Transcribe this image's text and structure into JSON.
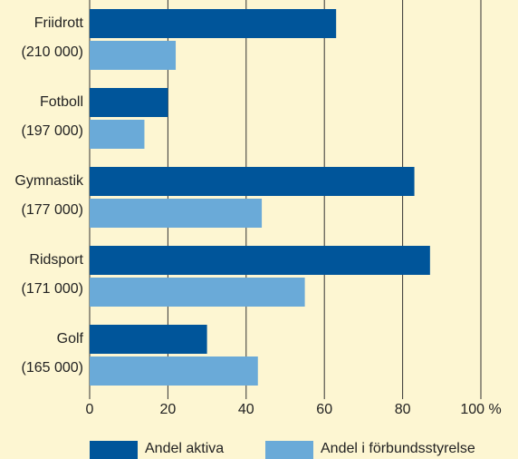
{
  "chart_data": {
    "type": "hbar",
    "categories": [
      [
        "Friidrott",
        "(210 000)"
      ],
      [
        "Fotboll",
        "(197 000)"
      ],
      [
        "Gymnastik",
        "(177 000)"
      ],
      [
        "Ridsport",
        "(171 000)"
      ],
      [
        "Golf",
        "(165 000)"
      ]
    ],
    "series": [
      {
        "name": "Andel aktiva",
        "color": "#00559a",
        "values": [
          63,
          20,
          83,
          87,
          30
        ]
      },
      {
        "name": "Andel i förbundsstyrelse",
        "color": "#6aaad8",
        "values": [
          22,
          14,
          44,
          55,
          43
        ]
      }
    ],
    "xlim": [
      0,
      100
    ],
    "xticks": [
      0,
      20,
      40,
      60,
      80,
      {
        "value": 100,
        "label": "100 %"
      }
    ],
    "grid": true,
    "background": "#fdf6d2"
  }
}
